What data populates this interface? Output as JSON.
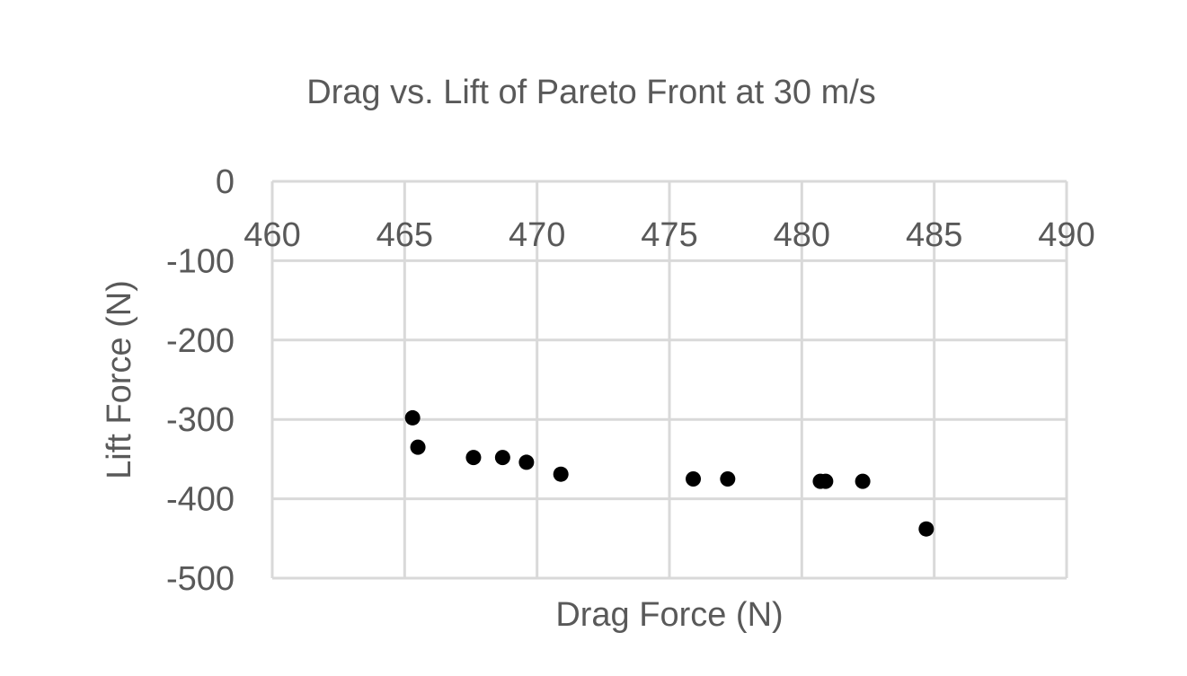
{
  "chart_data": {
    "type": "scatter",
    "title": "Drag vs. Lift of Pareto Front at 30 m/s",
    "xlabel": "Drag Force (N)",
    "ylabel": "Lift Force (N)",
    "xlim": [
      460,
      490
    ],
    "ylim": [
      -500,
      0
    ],
    "x_ticks": [
      460,
      465,
      470,
      475,
      480,
      485,
      490
    ],
    "y_ticks": [
      0,
      -100,
      -200,
      -300,
      -400,
      -500
    ],
    "x_tick_labels": [
      "460",
      "465",
      "470",
      "475",
      "480",
      "485",
      "490"
    ],
    "y_tick_labels": [
      "0",
      "-100",
      "-200",
      "-300",
      "-400",
      "-500"
    ],
    "x_axis_position": "top (crosses at y = 0)",
    "grid": true,
    "marker_color": "#000000",
    "points": [
      {
        "x": 465.3,
        "y": -298
      },
      {
        "x": 465.5,
        "y": -335
      },
      {
        "x": 467.6,
        "y": -348
      },
      {
        "x": 468.7,
        "y": -348
      },
      {
        "x": 469.6,
        "y": -354
      },
      {
        "x": 470.9,
        "y": -369
      },
      {
        "x": 475.9,
        "y": -375
      },
      {
        "x": 477.2,
        "y": -375
      },
      {
        "x": 480.7,
        "y": -378
      },
      {
        "x": 480.9,
        "y": -378
      },
      {
        "x": 482.3,
        "y": -378
      },
      {
        "x": 484.7,
        "y": -438
      }
    ]
  }
}
